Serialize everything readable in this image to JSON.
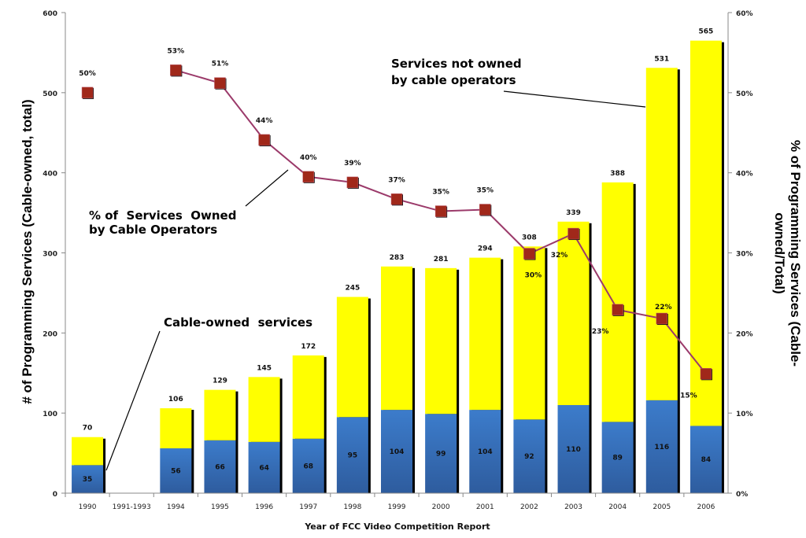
{
  "chart_data": {
    "type": "bar",
    "stacked": true,
    "categories": [
      "1990",
      "1991-1993",
      "1994",
      "1995",
      "1996",
      "1997",
      "1998",
      "1999",
      "2000",
      "2001",
      "2002",
      "2003",
      "2004",
      "2005",
      "2006"
    ],
    "series": [
      {
        "values": [
          35,
          null,
          56,
          66,
          64,
          68,
          95,
          104,
          99,
          104,
          92,
          110,
          89,
          116,
          84
        ],
        "color": "#3a76c4"
      },
      {
        "values": [
          35,
          null,
          50,
          63,
          81,
          104,
          150,
          179,
          182,
          190,
          216,
          229,
          299,
          415,
          481
        ],
        "color": "#ffff00"
      }
    ],
    "totals": [
      70,
      null,
      106,
      129,
      145,
      172,
      245,
      283,
      281,
      294,
      308,
      339,
      388,
      531,
      565
    ],
    "line_series": {
      "type": "line",
      "axis": "right",
      "values": [
        50,
        null,
        52.8,
        51.2,
        44.1,
        39.5,
        38.8,
        36.7,
        35.2,
        35.4,
        29.9,
        32.4,
        22.9,
        21.8,
        14.9
      ],
      "labels": [
        "50%",
        "",
        "53%",
        "51%",
        "44%",
        "40%",
        "39%",
        "37%",
        "35%",
        "35%",
        "30%",
        "32%",
        "23%",
        "22%",
        "15%"
      ],
      "color": "#9b3a6a",
      "marker_color": "#a0281a"
    },
    "xlabel": "Year of FCC Video Competition Report",
    "ylabel": "# of Programming Services (Cable-owned, total)",
    "ylabel_right_lines": [
      "% of Programming Services (Cable-",
      "owned/Total)"
    ],
    "ylim": [
      0,
      600
    ],
    "yticks": [
      "0",
      "100",
      "200",
      "300",
      "400",
      "500",
      "600"
    ],
    "ylim_right": [
      0,
      60
    ],
    "yticks_right": [
      "0%",
      "10%",
      "20%",
      "30%",
      "40%",
      "50%",
      "60%"
    ],
    "grid": false,
    "annotations": {
      "not_owned": [
        "Services not owned",
        "by cable operators"
      ],
      "percent_owned": [
        "% of  Services  Owned",
        "by Cable Operators"
      ],
      "cable_owned": "Cable-owned  services"
    }
  }
}
